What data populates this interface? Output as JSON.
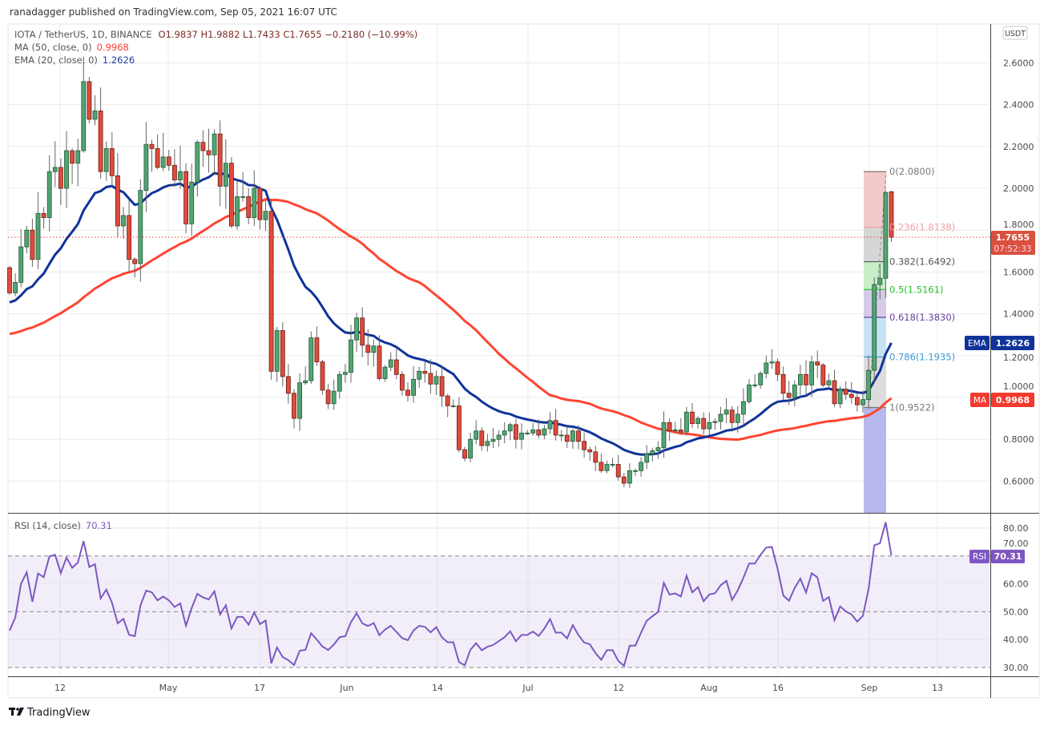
{
  "header": {
    "published": "ranadagger published on TradingView.com, Sep 05, 2021 16:07 UTC"
  },
  "legend": {
    "symbol": "IOTA / TetherUS, 1D, BINANCE",
    "ohlc": "O1.9837  H1.9882  L1.7433  C1.7655  −0.2180 (−10.99%)",
    "ma_label": "MA (50, close, 0)",
    "ma_value": "0.9968",
    "ema_label": "EMA (20, close, 0)",
    "ema_value": "1.2626",
    "rsi_label": "RSI (14, close)",
    "rsi_value": "70.31"
  },
  "currency_button": "USDT",
  "price_axis": [
    "2.6000",
    "2.4000",
    "2.2000",
    "2.0000",
    "1.8000",
    "1.6000",
    "1.4000",
    "1.2000",
    "1.0000",
    "0.8000",
    "0.6000"
  ],
  "rsi_axis": [
    "80.00",
    "70.00",
    "60.00",
    "50.00",
    "40.00",
    "30.00"
  ],
  "time_axis": [
    "12",
    "May",
    "17",
    "Jun",
    "14",
    "Jul",
    "12",
    "Aug",
    "16",
    "Sep",
    "13"
  ],
  "badges": {
    "last_price": "1.7655",
    "countdown": "07:52:33",
    "ema_tag": "EMA",
    "ema_value": "1.2626",
    "ma_tag": "MA",
    "ma_value": "0.9968",
    "rsi_tag": "RSI",
    "rsi_value": "70.31"
  },
  "fib": {
    "levels": [
      {
        "label": "0(2.0800)",
        "price": 2.08,
        "color": "#787878"
      },
      {
        "label": "0.236(1.8138)",
        "price": 1.8138,
        "color": "#f0a0a0"
      },
      {
        "label": "0.382(1.6492)",
        "price": 1.6492,
        "color": "#555555"
      },
      {
        "label": "0.5(1.5161)",
        "price": 1.5161,
        "color": "#22c322"
      },
      {
        "label": "0.618(1.3830)",
        "price": 1.383,
        "color": "#6a3fa0"
      },
      {
        "label": "0.786(1.1935)",
        "price": 1.1935,
        "color": "#3a9bd8"
      },
      {
        "label": "1(0.9522)",
        "price": 0.9522,
        "color": "#787878"
      }
    ],
    "bands": [
      "#f3c9c9",
      "#d6d6d6",
      "#c7eec7",
      "#d6cbe8",
      "#c6e2f4",
      "#dcdcdc"
    ]
  },
  "footer": {
    "brand": "TradingView"
  },
  "colors": {
    "up": "#54a374",
    "down": "#e04b3c",
    "ma": "#ff4433",
    "ema": "#10339a",
    "rsi": "#7e57c2"
  },
  "chart_data": {
    "type": "candlestick",
    "title": "IOTA / TetherUS, 1D, BINANCE",
    "x_range": [
      "2021-04-03",
      "2021-09-05"
    ],
    "ylim": [
      0.48,
      2.75
    ],
    "first_open": 1.62,
    "last_candle": {
      "open": 1.9837,
      "high": 1.9882,
      "low": 1.7433,
      "close": 1.7655
    },
    "closes": [
      1.5,
      1.55,
      1.72,
      1.8,
      1.66,
      1.88,
      1.86,
      2.08,
      2.1,
      2.0,
      2.18,
      2.12,
      2.18,
      2.51,
      2.33,
      2.37,
      2.08,
      2.19,
      2.06,
      1.82,
      1.87,
      1.66,
      1.64,
      1.99,
      2.21,
      2.19,
      2.1,
      2.15,
      2.11,
      2.04,
      2.08,
      1.83,
      2.03,
      2.22,
      2.18,
      2.16,
      2.26,
      2.01,
      2.12,
      1.82,
      1.96,
      1.96,
      1.86,
      2.0,
      1.85,
      1.89,
      1.125,
      1.32,
      1.1,
      1.02,
      0.9,
      1.07,
      1.08,
      1.285,
      1.17,
      1.035,
      0.97,
      1.03,
      1.11,
      1.12,
      1.275,
      1.38,
      1.25,
      1.215,
      1.246,
      1.09,
      1.145,
      1.18,
      1.11,
      1.035,
      1.01,
      1.087,
      1.125,
      1.115,
      1.064,
      1.1,
      1.007,
      0.96,
      0.96,
      0.75,
      0.71,
      0.8,
      0.84,
      0.77,
      0.79,
      0.8,
      0.82,
      0.84,
      0.87,
      0.8,
      0.83,
      0.83,
      0.845,
      0.82,
      0.85,
      0.89,
      0.82,
      0.82,
      0.79,
      0.84,
      0.79,
      0.75,
      0.74,
      0.69,
      0.65,
      0.68,
      0.68,
      0.62,
      0.59,
      0.65,
      0.65,
      0.69,
      0.73,
      0.745,
      0.76,
      0.88,
      0.84,
      0.845,
      0.835,
      0.93,
      0.875,
      0.9,
      0.85,
      0.88,
      0.885,
      0.92,
      0.94,
      0.88,
      0.92,
      0.98,
      1.06,
      1.06,
      1.115,
      1.165,
      1.17,
      1.11,
      1.02,
      1.0,
      1.06,
      1.11,
      1.06,
      1.17,
      1.155,
      1.06,
      1.08,
      0.97,
      1.04,
      1.015,
      1.0,
      0.965,
      0.99,
      1.13,
      1.54,
      1.57,
      1.98,
      1.7655
    ],
    "indicators": {
      "ma_period": 50,
      "ema_period": 20,
      "rsi_period": 14,
      "rsi_levels": [
        70,
        50,
        30
      ],
      "last_ma": 0.9968,
      "last_ema": 1.2626,
      "last_rsi": 70.31
    }
  }
}
